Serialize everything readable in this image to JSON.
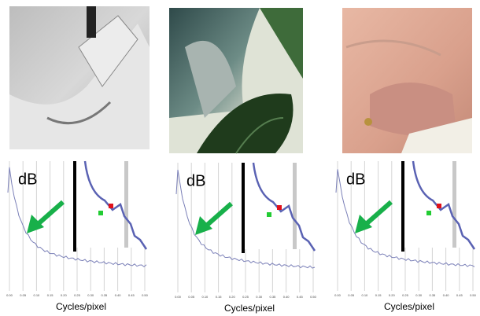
{
  "panels": [
    {
      "y_label": "dB",
      "x_label": "Cycles/pixel",
      "x_ticks": [
        "0.00",
        "0.05",
        "0.10",
        "0.15",
        "0.20",
        "0.25",
        "0.30",
        "0.35",
        "0.40",
        "0.45",
        "0.50"
      ]
    },
    {
      "y_label": "dB",
      "x_label": "Cycles/pixel",
      "x_ticks": [
        "0.00",
        "0.05",
        "0.10",
        "0.15",
        "0.20",
        "0.25",
        "0.30",
        "0.35",
        "0.40",
        "0.45",
        "0.50"
      ]
    },
    {
      "y_label": "dB",
      "x_label": "Cycles/pixel",
      "x_ticks": [
        "0.00",
        "0.05",
        "0.10",
        "0.15",
        "0.20",
        "0.25",
        "0.30",
        "0.35",
        "0.40",
        "0.45",
        "0.50"
      ]
    }
  ]
}
